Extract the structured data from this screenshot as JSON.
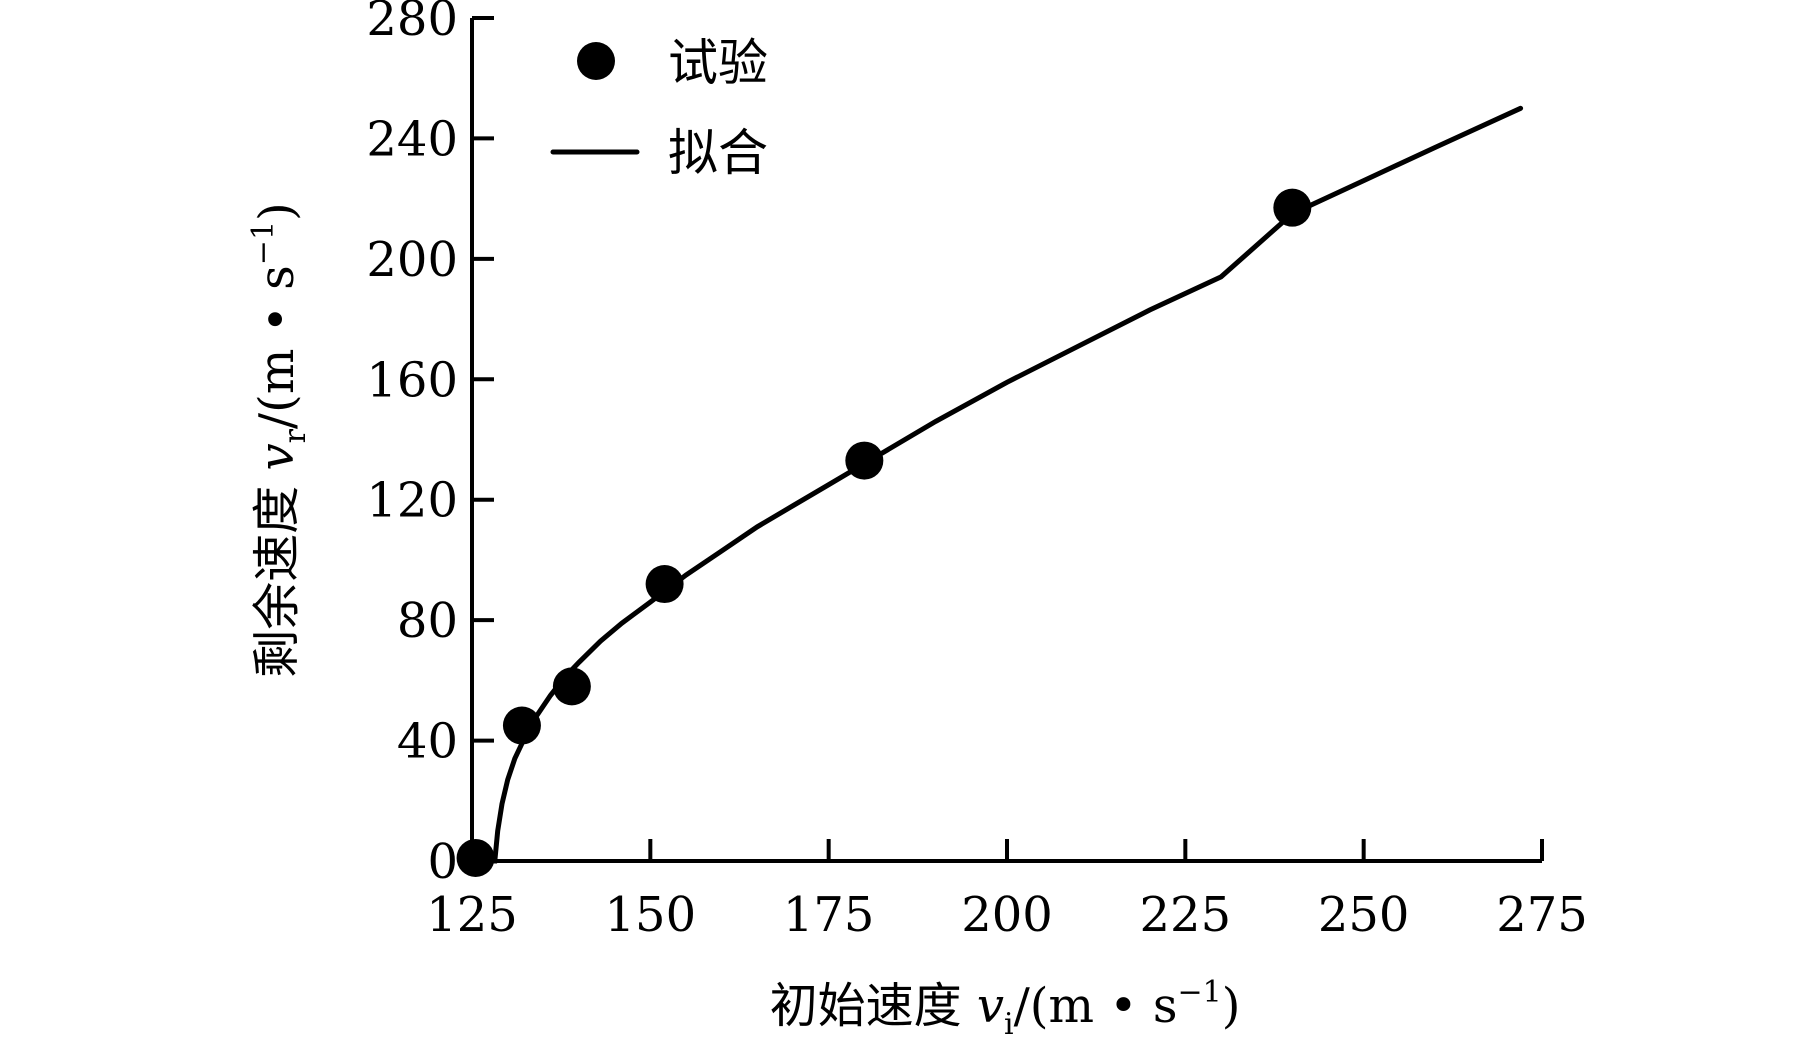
{
  "chart_data": {
    "type": "scatter",
    "xlabel": {
      "text": "初始速度 ",
      "var": "v",
      "sub": "i",
      "unit": "/(m • s",
      "sup": "−1",
      "close": ")"
    },
    "ylabel": {
      "text": "剩余速度 ",
      "var": "v",
      "sub": "r",
      "unit": "/(m • s",
      "sup": "−1",
      "close": ")"
    },
    "xlim": [
      125,
      275
    ],
    "ylim": [
      0,
      280
    ],
    "x_ticks": [
      125,
      150,
      175,
      200,
      225,
      250,
      275
    ],
    "y_ticks": [
      0,
      40,
      80,
      120,
      160,
      200,
      240,
      280
    ],
    "legend_position": "top-left",
    "series": [
      {
        "name": "试验",
        "kind": "scatter",
        "points": [
          [
            125.5,
            1
          ],
          [
            132,
            45
          ],
          [
            139,
            58
          ],
          [
            152,
            92
          ],
          [
            180,
            133
          ],
          [
            240,
            217
          ]
        ]
      },
      {
        "name": "拟合",
        "kind": "line",
        "x": [
          125,
          128.2,
          128.6,
          129.2,
          130,
          131,
          132,
          134,
          136,
          138,
          140,
          143,
          146,
          150,
          155,
          160,
          165,
          170,
          175,
          180,
          190,
          200,
          210,
          220,
          230,
          240,
          250,
          260,
          272
        ],
        "y": [
          0,
          0,
          10,
          19,
          27,
          34,
          39,
          48,
          55,
          61,
          66,
          73,
          79,
          86,
          95,
          103,
          111,
          118,
          125,
          132,
          146,
          159,
          171,
          183,
          194,
          215,
          226,
          237,
          250
        ]
      }
    ]
  }
}
